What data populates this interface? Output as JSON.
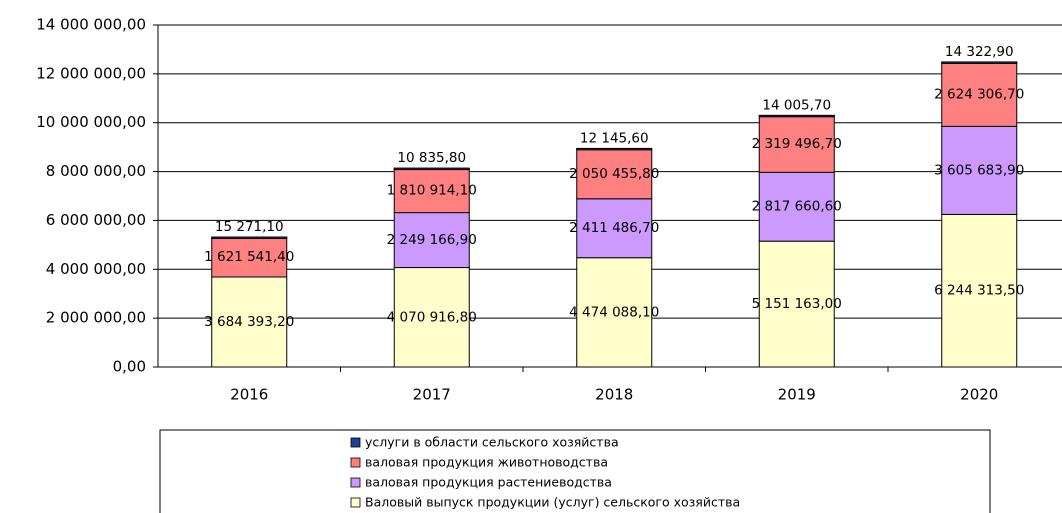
{
  "chart_data": {
    "type": "stacked_bar",
    "categories": [
      "2016",
      "2017",
      "2018",
      "2019",
      "2020"
    ],
    "series": [
      {
        "name": "услуги в области сельского хозяйства",
        "color": "#1f3f99",
        "values": [
          15271.1,
          10835.8,
          12145.6,
          14005.7,
          14322.9
        ],
        "value_labels": [
          "15 271,10",
          "10 835,80",
          "12 145,60",
          "14 005,70",
          "14 322,90"
        ]
      },
      {
        "name": "валовая продукция животноводства",
        "color": "#ff8080",
        "values": [
          1621541.4,
          1810914.1,
          2050455.8,
          2319496.7,
          2624306.7
        ],
        "value_labels": [
          "1 621 541,40",
          "1 810 914,10",
          "2 050 455,80",
          "2 319 496,70",
          "2 624 306,70"
        ]
      },
      {
        "name": "валовая продукция растениеводства",
        "color": "#cc99ff",
        "values": [
          null,
          2249166.9,
          2411486.7,
          2817660.6,
          3605683.9
        ],
        "value_labels": [
          null,
          "2 249 166,90",
          "2 411 486,70",
          "2 817 660,60",
          "3 605 683,90"
        ]
      },
      {
        "name": "Валовый выпуск продукции (услуг) сельского хозяйства",
        "color": "#ffffcc",
        "values": [
          3684393.2,
          4070916.8,
          4474088.1,
          5151163.0,
          6244313.5
        ],
        "value_labels": [
          "3 684 393,20",
          "4 070 916,80",
          "4 474 088,10",
          "5 151 163,00",
          "6 244 313,50"
        ]
      }
    ],
    "ylim": [
      0,
      14000000
    ],
    "yticks": [
      {
        "value": 0,
        "label": "0,00"
      },
      {
        "value": 2000000,
        "label": "2 000 000,00"
      },
      {
        "value": 4000000,
        "label": "4 000 000,00"
      },
      {
        "value": 6000000,
        "label": "6 000 000,00"
      },
      {
        "value": 8000000,
        "label": "8 000 000,00"
      },
      {
        "value": 10000000,
        "label": "10 000 000,00"
      },
      {
        "value": 12000000,
        "label": "12 000 000,00"
      },
      {
        "value": 14000000,
        "label": "14 000 000,00"
      }
    ],
    "grid": true,
    "legend": "bottom"
  }
}
